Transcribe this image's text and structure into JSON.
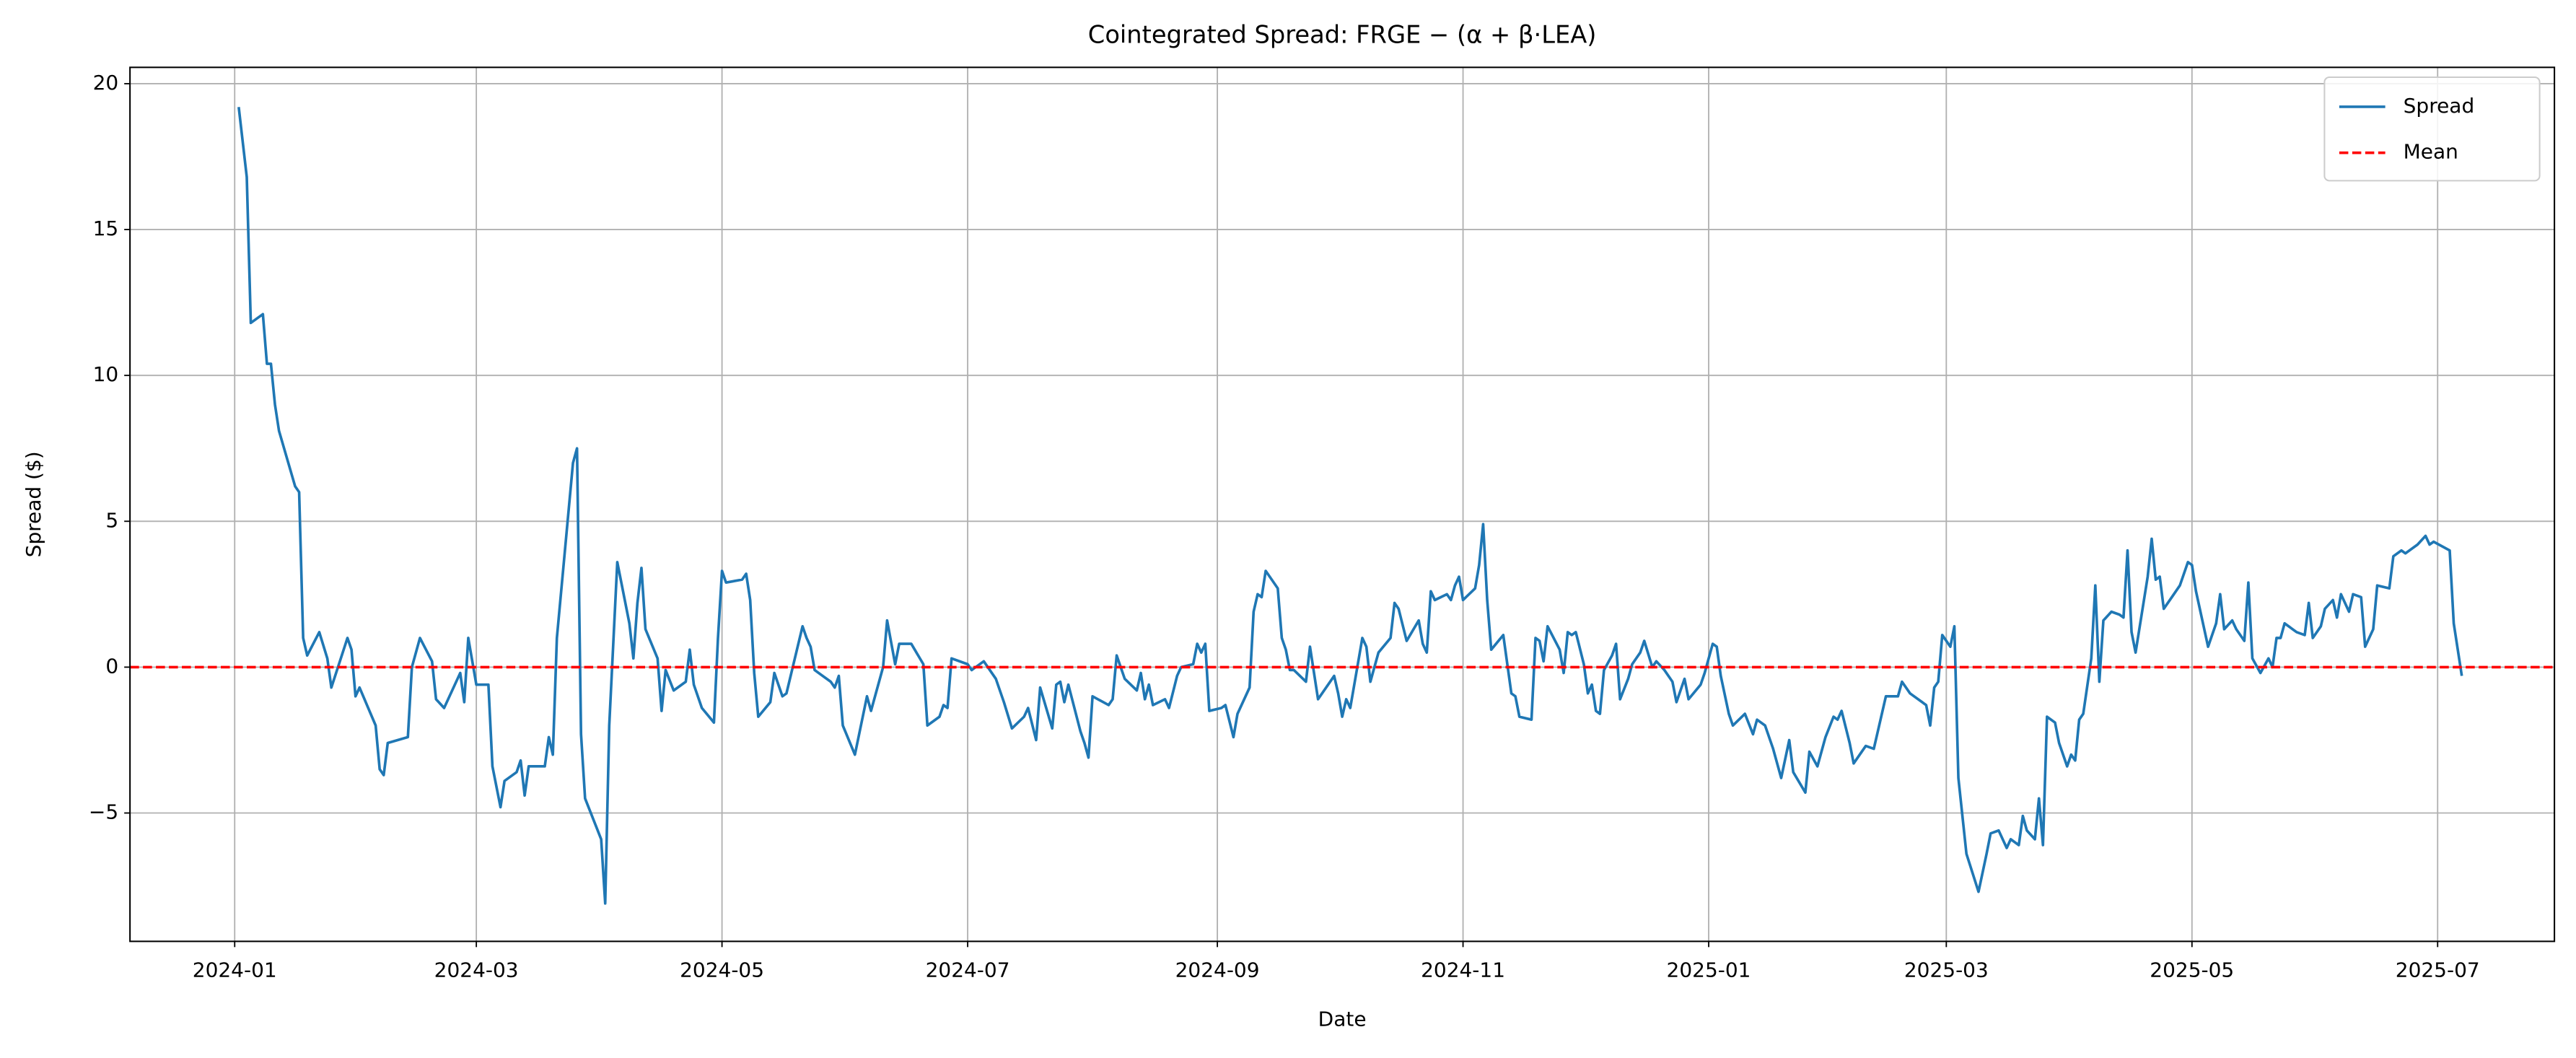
{
  "chart_data": {
    "type": "line",
    "title": "Cointegrated Spread: FRGE − (α + β·LEA)",
    "xlabel": "Date",
    "ylabel": "Spread ($)",
    "grid": true,
    "legend": "upper right",
    "xlim": [
      "2023-12-06",
      "2025-07-30"
    ],
    "xticks": [
      "2024-01",
      "2024-03",
      "2024-05",
      "2024-07",
      "2024-09",
      "2024-11",
      "2025-01",
      "2025-03",
      "2025-05",
      "2025-07"
    ],
    "ylim": [
      -9.4,
      20.56
    ],
    "yticks": [
      {
        "value": -5,
        "label": "−5"
      },
      0,
      5,
      10,
      15,
      20
    ],
    "x": [
      "2024-01-02",
      "2024-01-04",
      "2024-01-05",
      "2024-01-08",
      "2024-01-09",
      "2024-01-10",
      "2024-01-11",
      "2024-01-12",
      "2024-01-16",
      "2024-01-17",
      "2024-01-18",
      "2024-01-19",
      "2024-01-22",
      "2024-01-24",
      "2024-01-25",
      "2024-01-29",
      "2024-01-30",
      "2024-01-31",
      "2024-02-01",
      "2024-02-05",
      "2024-02-06",
      "2024-02-07",
      "2024-02-08",
      "2024-02-13",
      "2024-02-14",
      "2024-02-16",
      "2024-02-19",
      "2024-02-20",
      "2024-02-22",
      "2024-02-26",
      "2024-02-27",
      "2024-02-28",
      "2024-03-01",
      "2024-03-04",
      "2024-03-05",
      "2024-03-07",
      "2024-03-08",
      "2024-03-11",
      "2024-03-12",
      "2024-03-13",
      "2024-03-14",
      "2024-03-18",
      "2024-03-19",
      "2024-03-20",
      "2024-03-21",
      "2024-03-25",
      "2024-03-26",
      "2024-03-27",
      "2024-03-28",
      "2024-04-01",
      "2024-04-02",
      "2024-04-03",
      "2024-04-05",
      "2024-04-08",
      "2024-04-09",
      "2024-04-10",
      "2024-04-11",
      "2024-04-12",
      "2024-04-15",
      "2024-04-16",
      "2024-04-17",
      "2024-04-19",
      "2024-04-22",
      "2024-04-23",
      "2024-04-24",
      "2024-04-26",
      "2024-04-29",
      "2024-04-30",
      "2024-05-01",
      "2024-05-02",
      "2024-05-06",
      "2024-05-07",
      "2024-05-08",
      "2024-05-09",
      "2024-05-10",
      "2024-05-13",
      "2024-05-14",
      "2024-05-16",
      "2024-05-17",
      "2024-05-21",
      "2024-05-22",
      "2024-05-23",
      "2024-05-24",
      "2024-05-28",
      "2024-05-29",
      "2024-05-30",
      "2024-05-31",
      "2024-06-03",
      "2024-06-06",
      "2024-06-07",
      "2024-06-10",
      "2024-06-11",
      "2024-06-13",
      "2024-06-14",
      "2024-06-17",
      "2024-06-20",
      "2024-06-21",
      "2024-06-24",
      "2024-06-25",
      "2024-06-26",
      "2024-06-27",
      "2024-07-01",
      "2024-07-02",
      "2024-07-05",
      "2024-07-08",
      "2024-07-10",
      "2024-07-12",
      "2024-07-15",
      "2024-07-16",
      "2024-07-18",
      "2024-07-19",
      "2024-07-22",
      "2024-07-23",
      "2024-07-24",
      "2024-07-25",
      "2024-07-26",
      "2024-07-29",
      "2024-07-30",
      "2024-07-31",
      "2024-08-01",
      "2024-08-05",
      "2024-08-06",
      "2024-08-07",
      "2024-08-09",
      "2024-08-12",
      "2024-08-13",
      "2024-08-14",
      "2024-08-15",
      "2024-08-16",
      "2024-08-19",
      "2024-08-20",
      "2024-08-22",
      "2024-08-23",
      "2024-08-26",
      "2024-08-27",
      "2024-08-28",
      "2024-08-29",
      "2024-08-30",
      "2024-09-02",
      "2024-09-03",
      "2024-09-05",
      "2024-09-06",
      "2024-09-09",
      "2024-09-10",
      "2024-09-11",
      "2024-09-12",
      "2024-09-13",
      "2024-09-16",
      "2024-09-17",
      "2024-09-18",
      "2024-09-19",
      "2024-09-20",
      "2024-09-23",
      "2024-09-24",
      "2024-09-26",
      "2024-09-30",
      "2024-10-01",
      "2024-10-02",
      "2024-10-03",
      "2024-10-04",
      "2024-10-07",
      "2024-10-08",
      "2024-10-09",
      "2024-10-11",
      "2024-10-14",
      "2024-10-15",
      "2024-10-16",
      "2024-10-18",
      "2024-10-21",
      "2024-10-22",
      "2024-10-23",
      "2024-10-24",
      "2024-10-25",
      "2024-10-28",
      "2024-10-29",
      "2024-10-30",
      "2024-10-31",
      "2024-11-01",
      "2024-11-04",
      "2024-11-05",
      "2024-11-06",
      "2024-11-07",
      "2024-11-08",
      "2024-11-11",
      "2024-11-12",
      "2024-11-13",
      "2024-11-14",
      "2024-11-15",
      "2024-11-18",
      "2024-11-19",
      "2024-11-20",
      "2024-11-21",
      "2024-11-22",
      "2024-11-25",
      "2024-11-26",
      "2024-11-27",
      "2024-11-28",
      "2024-11-29",
      "2024-12-01",
      "2024-12-02",
      "2024-12-03",
      "2024-12-04",
      "2024-12-05",
      "2024-12-06",
      "2024-12-08",
      "2024-12-09",
      "2024-12-10",
      "2024-12-12",
      "2024-12-13",
      "2024-12-15",
      "2024-12-16",
      "2024-12-18",
      "2024-12-19",
      "2024-12-21",
      "2024-12-23",
      "2024-12-24",
      "2024-12-26",
      "2024-12-27",
      "2024-12-30",
      "2024-12-31",
      "2025-01-02",
      "2025-01-03",
      "2025-01-04",
      "2025-01-06",
      "2025-01-07",
      "2025-01-10",
      "2025-01-12",
      "2025-01-13",
      "2025-01-15",
      "2025-01-17",
      "2025-01-19",
      "2025-01-21",
      "2025-01-22",
      "2025-01-25",
      "2025-01-26",
      "2025-01-28",
      "2025-01-30",
      "2025-02-01",
      "2025-02-02",
      "2025-02-03",
      "2025-02-05",
      "2025-02-06",
      "2025-02-09",
      "2025-02-11",
      "2025-02-14",
      "2025-02-17",
      "2025-02-18",
      "2025-02-20",
      "2025-02-23",
      "2025-02-24",
      "2025-02-25",
      "2025-02-26",
      "2025-02-27",
      "2025-02-28",
      "2025-03-02",
      "2025-03-03",
      "2025-03-04",
      "2025-03-06",
      "2025-03-09",
      "2025-03-11",
      "2025-03-12",
      "2025-03-14",
      "2025-03-16",
      "2025-03-17",
      "2025-03-19",
      "2025-03-20",
      "2025-03-21",
      "2025-03-23",
      "2025-03-24",
      "2025-03-25",
      "2025-03-26",
      "2025-03-28",
      "2025-03-29",
      "2025-03-31",
      "2025-04-01",
      "2025-04-02",
      "2025-04-03",
      "2025-04-04",
      "2025-04-06",
      "2025-04-07",
      "2025-04-08",
      "2025-04-09",
      "2025-04-11",
      "2025-04-13",
      "2025-04-14",
      "2025-04-15",
      "2025-04-16",
      "2025-04-17",
      "2025-04-20",
      "2025-04-21",
      "2025-04-22",
      "2025-04-23",
      "2025-04-24",
      "2025-04-26",
      "2025-04-28",
      "2025-04-30",
      "2025-05-01",
      "2025-05-02",
      "2025-05-05",
      "2025-05-07",
      "2025-05-08",
      "2025-05-09",
      "2025-05-11",
      "2025-05-12",
      "2025-05-14",
      "2025-05-15",
      "2025-05-16",
      "2025-05-18",
      "2025-05-20",
      "2025-05-21",
      "2025-05-22",
      "2025-05-23",
      "2025-05-24",
      "2025-05-27",
      "2025-05-29",
      "2025-05-30",
      "2025-05-31",
      "2025-06-02",
      "2025-06-03",
      "2025-06-05",
      "2025-06-06",
      "2025-06-07",
      "2025-06-09",
      "2025-06-10",
      "2025-06-12",
      "2025-06-13",
      "2025-06-15",
      "2025-06-16",
      "2025-06-19",
      "2025-06-20",
      "2025-06-22",
      "2025-06-23",
      "2025-06-26",
      "2025-06-28",
      "2025-06-29",
      "2025-06-30",
      "2025-07-04",
      "2025-07-05",
      "2025-07-07"
    ],
    "series": [
      {
        "name": "Spread",
        "color": "#1f77b4",
        "linestyle": "solid",
        "values": [
          19.2,
          16.8,
          11.8,
          12.1,
          10.4,
          10.4,
          9.0,
          8.1,
          6.2,
          6.0,
          1.0,
          0.4,
          1.2,
          0.3,
          -0.7,
          1.0,
          0.6,
          -1.0,
          -0.7,
          -2.0,
          -3.5,
          -3.7,
          -2.6,
          -2.4,
          0.0,
          1.0,
          0.2,
          -1.1,
          -1.4,
          -0.2,
          -1.2,
          1.0,
          -0.6,
          -0.6,
          -3.4,
          -4.8,
          -3.9,
          -3.6,
          -3.2,
          -4.4,
          -3.4,
          -3.4,
          -2.4,
          -3.0,
          1.0,
          7.0,
          7.5,
          -2.3,
          -4.5,
          -5.9,
          -8.1,
          -2.0,
          3.6,
          1.5,
          0.3,
          2.2,
          3.4,
          1.3,
          0.3,
          -1.5,
          -0.1,
          -0.8,
          -0.5,
          0.6,
          -0.6,
          -1.4,
          -1.9,
          1.0,
          3.3,
          2.9,
          3.0,
          3.2,
          2.3,
          -0.2,
          -1.7,
          -1.2,
          -0.2,
          -1.0,
          -0.9,
          1.4,
          1.0,
          0.7,
          -0.1,
          -0.5,
          -0.7,
          -0.3,
          -2.0,
          -3.0,
          -1.0,
          -1.5,
          0.0,
          1.6,
          0.1,
          0.8,
          0.8,
          0.1,
          -2.0,
          -1.7,
          -1.3,
          -1.4,
          0.3,
          0.1,
          -0.1,
          0.2,
          -0.4,
          -1.2,
          -2.1,
          -1.7,
          -1.4,
          -2.5,
          -0.7,
          -2.1,
          -0.6,
          -0.5,
          -1.2,
          -0.6,
          -2.2,
          -2.6,
          -3.1,
          -1.0,
          -1.3,
          -1.1,
          0.4,
          -0.4,
          -0.8,
          -0.2,
          -1.1,
          -0.6,
          -1.3,
          -1.1,
          -1.4,
          -0.3,
          0.0,
          0.1,
          0.8,
          0.5,
          0.8,
          -1.5,
          -1.4,
          -1.3,
          -2.4,
          -1.6,
          -0.7,
          1.9,
          2.5,
          2.4,
          3.3,
          2.7,
          1.0,
          0.6,
          -0.1,
          -0.1,
          -0.5,
          0.7,
          -1.1,
          -0.3,
          -0.9,
          -1.7,
          -1.1,
          -1.4,
          1.0,
          0.7,
          -0.5,
          0.5,
          1.0,
          2.2,
          2.0,
          0.9,
          1.6,
          0.8,
          0.5,
          2.6,
          2.3,
          2.5,
          2.3,
          2.8,
          3.1,
          2.3,
          2.7,
          3.5,
          4.9,
          2.3,
          0.6,
          1.1,
          0.1,
          -0.9,
          -1.0,
          -1.7,
          -1.8,
          1.0,
          0.9,
          0.2,
          1.4,
          0.6,
          -0.2,
          1.2,
          1.1,
          1.2,
          0.1,
          -0.9,
          -0.6,
          -1.5,
          -1.6,
          -0.1,
          0.4,
          0.8,
          -1.1,
          -0.4,
          0.1,
          0.5,
          0.9,
          0.0,
          0.2,
          -0.1,
          -0.5,
          -1.2,
          -0.4,
          -1.1,
          -0.6,
          -0.2,
          0.8,
          0.7,
          -0.3,
          -1.6,
          -2.0,
          -1.6,
          -2.3,
          -1.8,
          -2.0,
          -2.8,
          -3.8,
          -2.5,
          -3.6,
          -4.3,
          -2.9,
          -3.4,
          -2.4,
          -1.7,
          -1.8,
          -1.5,
          -2.6,
          -3.3,
          -2.7,
          -2.8,
          -1.0,
          -1.0,
          -0.5,
          -0.9,
          -1.2,
          -1.3,
          -2.0,
          -0.7,
          -0.5,
          1.1,
          0.7,
          1.4,
          -3.8,
          -6.4,
          -7.7,
          -6.4,
          -5.7,
          -5.6,
          -6.2,
          -5.9,
          -6.1,
          -5.1,
          -5.6,
          -5.9,
          -4.5,
          -6.1,
          -1.7,
          -1.9,
          -2.6,
          -3.4,
          -3.0,
          -3.2,
          -1.8,
          -1.6,
          0.3,
          2.8,
          -0.5,
          1.6,
          1.9,
          1.8,
          1.7,
          4.0,
          1.2,
          0.5,
          3.1,
          4.4,
          3.0,
          3.1,
          2.0,
          2.4,
          2.8,
          3.6,
          3.5,
          2.6,
          0.7,
          1.5,
          2.5,
          1.3,
          1.6,
          1.3,
          0.9,
          2.9,
          0.3,
          -0.2,
          0.3,
          0.0,
          1.0,
          1.0,
          1.5,
          1.2,
          1.1,
          2.2,
          1.0,
          1.4,
          2.0,
          2.3,
          1.7,
          2.5,
          1.9,
          2.5,
          2.4,
          0.7,
          1.3,
          2.8,
          2.7,
          3.8,
          4.0,
          3.9,
          4.2,
          4.5,
          4.2,
          4.3,
          4.0,
          1.5,
          -0.3
        ]
      },
      {
        "name": "Mean",
        "color": "#ff0000",
        "linestyle": "dashed",
        "y": 0
      }
    ]
  }
}
